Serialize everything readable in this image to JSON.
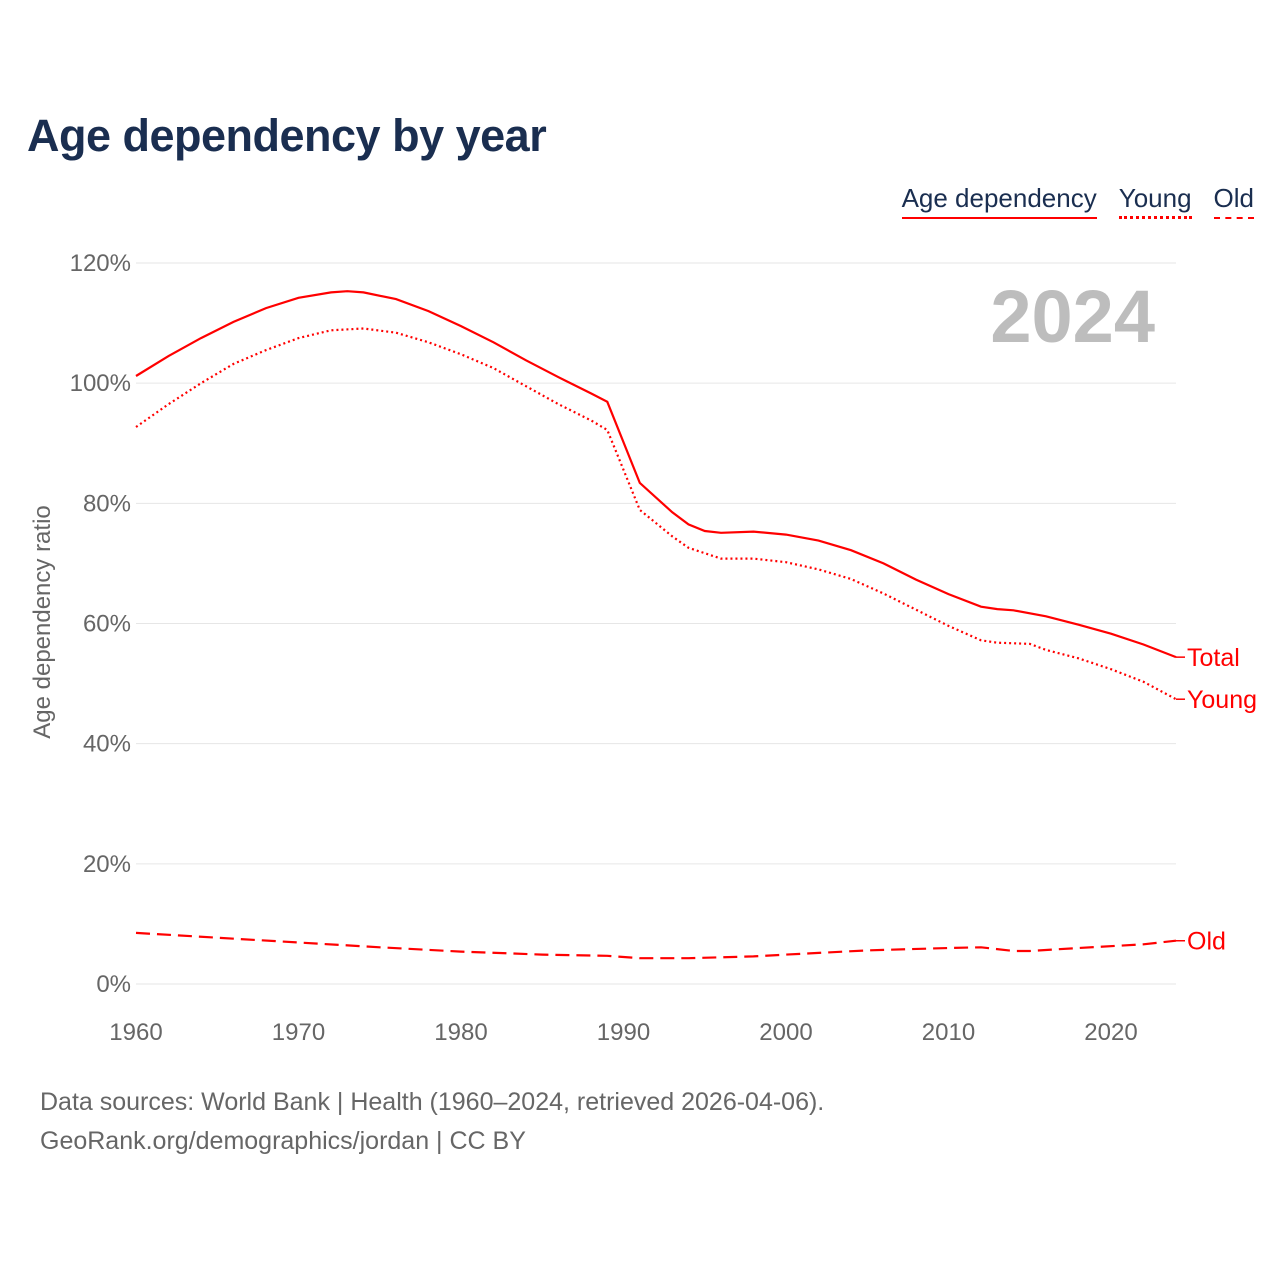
{
  "chart_data": {
    "type": "line",
    "title": "Age dependency by year",
    "xlabel": "",
    "ylabel": "Age dependency ratio",
    "xlim": [
      1960,
      2024
    ],
    "ylim": [
      0,
      120
    ],
    "x_ticks": [
      "1960",
      "1970",
      "1980",
      "1990",
      "2000",
      "2010",
      "2020"
    ],
    "y_ticks": [
      "0%",
      "20%",
      "40%",
      "60%",
      "80%",
      "100%",
      "120%"
    ],
    "grid": true,
    "legend": {
      "placement": "top-right",
      "entries": [
        "Age dependency",
        "Young",
        "Old"
      ]
    },
    "annotation": "2024",
    "series": [
      {
        "name": "Total",
        "label": "Total",
        "style": "solid",
        "x": [
          1960,
          1962,
          1964,
          1966,
          1968,
          1970,
          1972,
          1973,
          1974,
          1976,
          1978,
          1980,
          1982,
          1984,
          1986,
          1988,
          1989,
          1991,
          1993,
          1994,
          1995,
          1996,
          1998,
          2000,
          2002,
          2004,
          2006,
          2008,
          2010,
          2012,
          2013,
          2014,
          2016,
          2018,
          2020,
          2022,
          2024
        ],
        "y": [
          101.2,
          104.5,
          107.5,
          110.2,
          112.5,
          114.2,
          115.1,
          115.3,
          115.1,
          114.0,
          112.0,
          109.5,
          106.8,
          103.8,
          101.0,
          98.3,
          96.9,
          83.4,
          78.5,
          76.5,
          75.4,
          75.1,
          75.3,
          74.8,
          73.8,
          72.2,
          70.0,
          67.3,
          64.9,
          62.8,
          62.4,
          62.2,
          61.2,
          59.8,
          58.3,
          56.5,
          54.4
        ]
      },
      {
        "name": "Young",
        "label": "Young",
        "style": "dotted",
        "x": [
          1960,
          1962,
          1964,
          1966,
          1968,
          1970,
          1972,
          1974,
          1976,
          1978,
          1980,
          1982,
          1984,
          1986,
          1988,
          1989,
          1991,
          1993,
          1994,
          1996,
          1998,
          2000,
          2002,
          2004,
          2006,
          2008,
          2010,
          2012,
          2013,
          2015,
          2016,
          2018,
          2020,
          2022,
          2024
        ],
        "y": [
          92.7,
          96.5,
          100.0,
          103.2,
          105.5,
          107.5,
          108.8,
          109.1,
          108.4,
          106.8,
          104.8,
          102.5,
          99.5,
          96.5,
          93.8,
          92.2,
          78.9,
          74.5,
          72.6,
          70.8,
          70.8,
          70.2,
          69.0,
          67.4,
          65.0,
          62.3,
          59.6,
          57.2,
          56.8,
          56.6,
          55.6,
          54.2,
          52.4,
          50.3,
          47.4
        ]
      },
      {
        "name": "Old",
        "label": "Old",
        "style": "dashed",
        "x": [
          1960,
          1965,
          1970,
          1975,
          1980,
          1985,
          1989,
          1991,
          1994,
          1998,
          2000,
          2005,
          2010,
          2012,
          2014,
          2015,
          2018,
          2022,
          2024
        ],
        "y": [
          8.5,
          7.7,
          6.9,
          6.1,
          5.4,
          4.9,
          4.7,
          4.3,
          4.3,
          4.6,
          4.9,
          5.6,
          6.0,
          6.1,
          5.5,
          5.5,
          6.0,
          6.6,
          7.2
        ]
      }
    ],
    "color": "#ff0000"
  },
  "footer": {
    "line1": "Data sources: World Bank | Health (1960–2024, retrieved 2026-04-06).",
    "line2": "GeoRank.org/demographics/jordan | CC BY"
  }
}
